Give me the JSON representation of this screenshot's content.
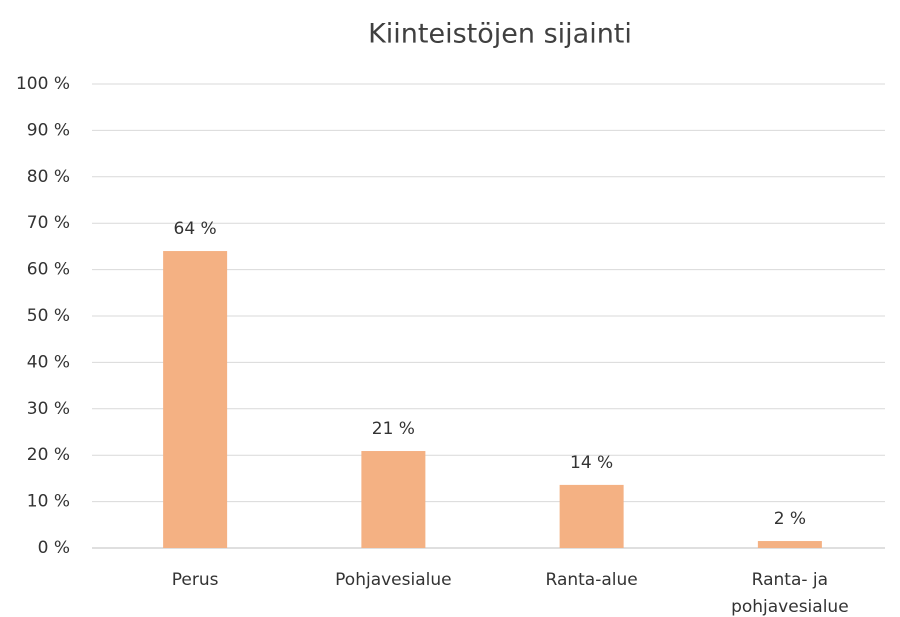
{
  "chart_data": {
    "type": "bar",
    "title": "Kiinteistöjen sijainti",
    "categories": [
      "Perus",
      "Pohjavesialue",
      "Ranta-alue",
      "Ranta- ja pohjavesialue"
    ],
    "values": [
      64,
      20.9,
      13.6,
      1.5
    ],
    "value_labels": [
      "64 %",
      "21 %",
      "14 %",
      "2 %"
    ],
    "color": "#f4b183",
    "ylim": [
      0,
      100
    ],
    "yticks": [
      {
        "value": 0,
        "label": "0 %"
      },
      {
        "value": 10,
        "label": "10 %"
      },
      {
        "value": 20,
        "label": "20 %"
      },
      {
        "value": 30,
        "label": "30 %"
      },
      {
        "value": 40,
        "label": "40 %"
      },
      {
        "value": 50,
        "label": "50 %"
      },
      {
        "value": 60,
        "label": "60 %"
      },
      {
        "value": 70,
        "label": "70 %"
      },
      {
        "value": 80,
        "label": "80 %"
      },
      {
        "value": 90,
        "label": "90 %"
      },
      {
        "value": 100,
        "label": "100 %"
      }
    ],
    "grid": true
  }
}
